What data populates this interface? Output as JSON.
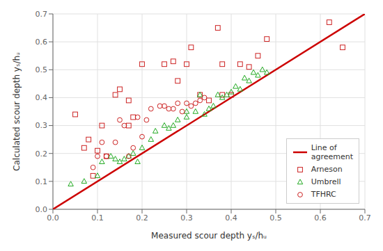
{
  "chart_data": {
    "type": "scatter",
    "xlabel": "Measured scour depth yₛ/hᵤ",
    "ylabel": "Calculated scour depth yₛ/hᵤ",
    "xlim": [
      0.0,
      0.7
    ],
    "ylim": [
      0.0,
      0.7
    ],
    "xticks": [
      {
        "value": 0.0,
        "label": "0.0"
      },
      0.1,
      0.2,
      0.3,
      0.4,
      0.5,
      0.6,
      0.7
    ],
    "yticks": [
      {
        "value": 0.0,
        "label": "0.0"
      },
      0.1,
      0.2,
      0.3,
      0.4,
      0.5,
      0.6,
      0.7
    ],
    "grid": true,
    "legend": "lower right",
    "series": [
      {
        "name": "Line of\nagreement",
        "type": "line",
        "color": "#cc0000",
        "x": [
          0,
          0.7
        ],
        "values": [
          0,
          0.7
        ]
      },
      {
        "name": "Arneson",
        "type": "scatter",
        "marker": "square",
        "color": "#cc2222",
        "x": [
          0.05,
          0.07,
          0.08,
          0.09,
          0.1,
          0.11,
          0.12,
          0.14,
          0.15,
          0.17,
          0.17,
          0.18,
          0.2,
          0.25,
          0.27,
          0.28,
          0.3,
          0.31,
          0.33,
          0.35,
          0.37,
          0.38,
          0.38,
          0.4,
          0.42,
          0.44,
          0.46,
          0.48,
          0.62,
          0.65
        ],
        "values": [
          0.34,
          0.22,
          0.25,
          0.12,
          0.21,
          0.3,
          0.19,
          0.41,
          0.43,
          0.39,
          0.3,
          0.33,
          0.52,
          0.52,
          0.53,
          0.46,
          0.52,
          0.58,
          0.41,
          0.39,
          0.65,
          0.52,
          0.41,
          0.41,
          0.52,
          0.51,
          0.55,
          0.61,
          0.67,
          0.58
        ]
      },
      {
        "name": "Umbrell",
        "type": "scatter",
        "marker": "triangle",
        "color": "#22aa22",
        "x": [
          0.04,
          0.07,
          0.1,
          0.11,
          0.13,
          0.14,
          0.15,
          0.16,
          0.17,
          0.18,
          0.19,
          0.2,
          0.22,
          0.23,
          0.25,
          0.26,
          0.27,
          0.28,
          0.3,
          0.3,
          0.32,
          0.33,
          0.34,
          0.35,
          0.36,
          0.37,
          0.38,
          0.39,
          0.4,
          0.41,
          0.42,
          0.43,
          0.44,
          0.45,
          0.46,
          0.47,
          0.48
        ],
        "values": [
          0.09,
          0.1,
          0.12,
          0.17,
          0.19,
          0.18,
          0.17,
          0.18,
          0.19,
          0.2,
          0.17,
          0.22,
          0.25,
          0.28,
          0.3,
          0.29,
          0.3,
          0.32,
          0.33,
          0.35,
          0.35,
          0.41,
          0.34,
          0.36,
          0.37,
          0.41,
          0.4,
          0.41,
          0.42,
          0.44,
          0.43,
          0.47,
          0.46,
          0.49,
          0.48,
          0.5,
          0.49
        ]
      },
      {
        "name": "TFHRC",
        "type": "scatter",
        "marker": "circle",
        "color": "#cc2222",
        "x": [
          0.09,
          0.1,
          0.11,
          0.12,
          0.14,
          0.15,
          0.16,
          0.17,
          0.18,
          0.19,
          0.2,
          0.21,
          0.22,
          0.24,
          0.25,
          0.26,
          0.27,
          0.28,
          0.29,
          0.3,
          0.31,
          0.32,
          0.33,
          0.34
        ],
        "values": [
          0.15,
          0.19,
          0.24,
          0.19,
          0.24,
          0.32,
          0.3,
          0.19,
          0.22,
          0.33,
          0.26,
          0.32,
          0.36,
          0.37,
          0.37,
          0.36,
          0.36,
          0.38,
          0.35,
          0.38,
          0.37,
          0.38,
          0.39,
          0.4
        ]
      }
    ]
  }
}
